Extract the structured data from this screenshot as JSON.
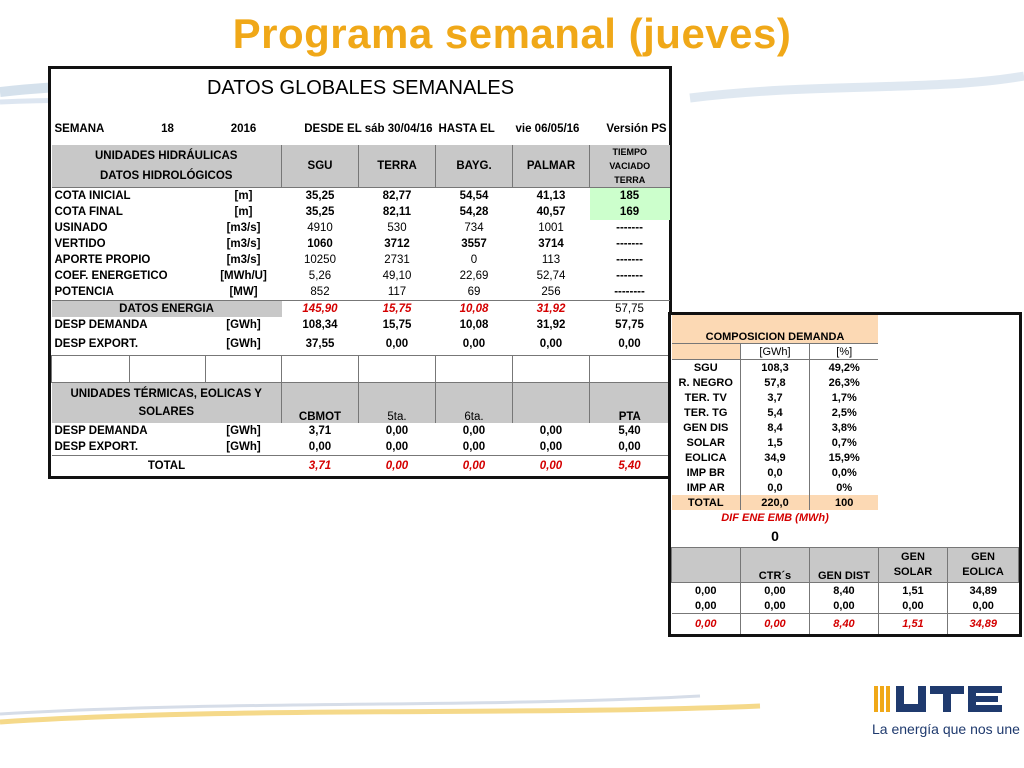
{
  "title": "Programa semanal (jueves)",
  "main": {
    "header": "DATOS GLOBALES SEMANALES",
    "week": {
      "semana_label": "SEMANA",
      "semana": "18",
      "year": "2016",
      "desde": "DESDE EL sáb 30/04/16",
      "hasta": "HASTA EL",
      "hasta_date": "vie 06/05/16",
      "version": "Versión",
      "ps": "PS"
    },
    "hydro_header": {
      "line1": "UNIDADES HIDRÁULICAS",
      "line2": "DATOS HIDROLÓGICOS",
      "sgu": "SGU",
      "terra": "TERRA",
      "bayg": "BAYG.",
      "palmar": "PALMAR",
      "tiempo1": "TIEMPO",
      "tiempo2": "VACIADO",
      "tiempo3": "TERRA"
    },
    "hydro_rows": [
      {
        "label": "COTA INICIAL",
        "unit": "[m]",
        "sgu": "35,25",
        "terra": "82,77",
        "bayg": "54,54",
        "palmar": "41,13",
        "tv": "185"
      },
      {
        "label": "COTA FINAL",
        "unit": "[m]",
        "sgu": "35,25",
        "terra": "82,11",
        "bayg": "54,28",
        "palmar": "40,57",
        "tv": "169"
      },
      {
        "label": "USINADO",
        "unit": "[m3/s]",
        "sgu": "4910",
        "terra": "530",
        "bayg": "734",
        "palmar": "1001",
        "tv": "-------"
      },
      {
        "label": "VERTIDO",
        "unit": "[m3/s]",
        "sgu": "1060",
        "terra": "3712",
        "bayg": "3557",
        "palmar": "3714",
        "tv": "-------"
      },
      {
        "label": "APORTE PROPIO",
        "unit": "[m3/s]",
        "sgu": "10250",
        "terra": "2731",
        "bayg": "0",
        "palmar": "113",
        "tv": "-------"
      },
      {
        "label": "COEF. ENERGETICO",
        "unit": "[MWh/U]",
        "sgu": "5,26",
        "terra": "49,10",
        "bayg": "22,69",
        "palmar": "52,74",
        "tv": "-------"
      },
      {
        "label": "POTENCIA",
        "unit": "[MW]",
        "sgu": "852",
        "terra": "117",
        "bayg": "69",
        "palmar": "256",
        "tv": "--------"
      }
    ],
    "datos_energia": {
      "label": "DATOS ENERGIA",
      "sgu": "145,90",
      "terra": "15,75",
      "bayg": "10,08",
      "palmar": "31,92",
      "tv": "57,75"
    },
    "desp_demanda": {
      "label": "DESP DEMANDA",
      "unit": "[GWh]",
      "sgu": "108,34",
      "terra": "15,75",
      "bayg": "10,08",
      "palmar": "31,92",
      "tv": "57,75"
    },
    "desp_export": {
      "label": "DESP EXPORT.",
      "unit": "[GWh]",
      "sgu": "37,55",
      "terra": "0,00",
      "bayg": "0,00",
      "palmar": "0,00",
      "tv": "0,00"
    },
    "thermal_header": {
      "line1": "UNIDADES TÉRMICAS, EOLICAS Y",
      "line2": "SOLARES",
      "cbmot": "CBMOT",
      "c5": "5ta.",
      "c6": "6ta.",
      "pta": "PTA"
    },
    "thermal_rows": [
      {
        "label": "DESP DEMANDA",
        "unit": "[GWh]",
        "a": "3,71",
        "b": "0,00",
        "c": "0,00",
        "d": "0,00",
        "e": "5,40"
      },
      {
        "label": "DESP EXPORT.",
        "unit": "[GWh]",
        "a": "0,00",
        "b": "0,00",
        "c": "0,00",
        "d": "0,00",
        "e": "0,00"
      }
    ],
    "total": {
      "label": "TOTAL",
      "a": "3,71",
      "b": "0,00",
      "c": "0,00",
      "d": "0,00",
      "e": "5,40"
    }
  },
  "side": {
    "header": "COMPOSICION DEMANDA",
    "unit_gwh": "[GWh]",
    "unit_pct": "[%]",
    "rows": [
      {
        "label": "SGU",
        "gwh": "108,3",
        "pct": "49,2%"
      },
      {
        "label": "R. NEGRO",
        "gwh": "57,8",
        "pct": "26,3%"
      },
      {
        "label": "TER. TV",
        "gwh": "3,7",
        "pct": "1,7%"
      },
      {
        "label": "TER. TG",
        "gwh": "5,4",
        "pct": "2,5%"
      },
      {
        "label": "GEN DIS",
        "gwh": "8,4",
        "pct": "3,8%"
      },
      {
        "label": "SOLAR",
        "gwh": "1,5",
        "pct": "0,7%"
      },
      {
        "label": "EOLICA",
        "gwh": "34,9",
        "pct": "15,9%"
      },
      {
        "label": "IMP BR",
        "gwh": "0,0",
        "pct": "0,0%"
      },
      {
        "label": "IMP AR",
        "gwh": "0,0",
        "pct": "0%"
      }
    ],
    "total": {
      "label": "TOTAL",
      "gwh": "220,0",
      "pct": "100"
    },
    "dif_label": "DIF ENE EMB (MWh)",
    "dif_value": "0",
    "gen_header": {
      "ctrs": "CTR´s",
      "gen_dist": "GEN DIST",
      "gen_solar1": "GEN",
      "gen_solar2": "SOLAR",
      "gen_eolica1": "GEN",
      "gen_eolica2": "EOLICA"
    },
    "gen_rows": [
      {
        "a": "0,00",
        "b": "0,00",
        "c": "8,40",
        "d": "1,51",
        "e": "34,89"
      },
      {
        "a": "0,00",
        "b": "0,00",
        "c": "0,00",
        "d": "0,00",
        "e": "0,00"
      }
    ],
    "gen_total": {
      "a": "0,00",
      "b": "0,00",
      "c": "8,40",
      "d": "1,51",
      "e": "34,89"
    }
  },
  "logo": {
    "slogan": "La energía que nos une",
    "colors": {
      "navy": "#1f3a6e",
      "orange": "#f0a818"
    }
  }
}
